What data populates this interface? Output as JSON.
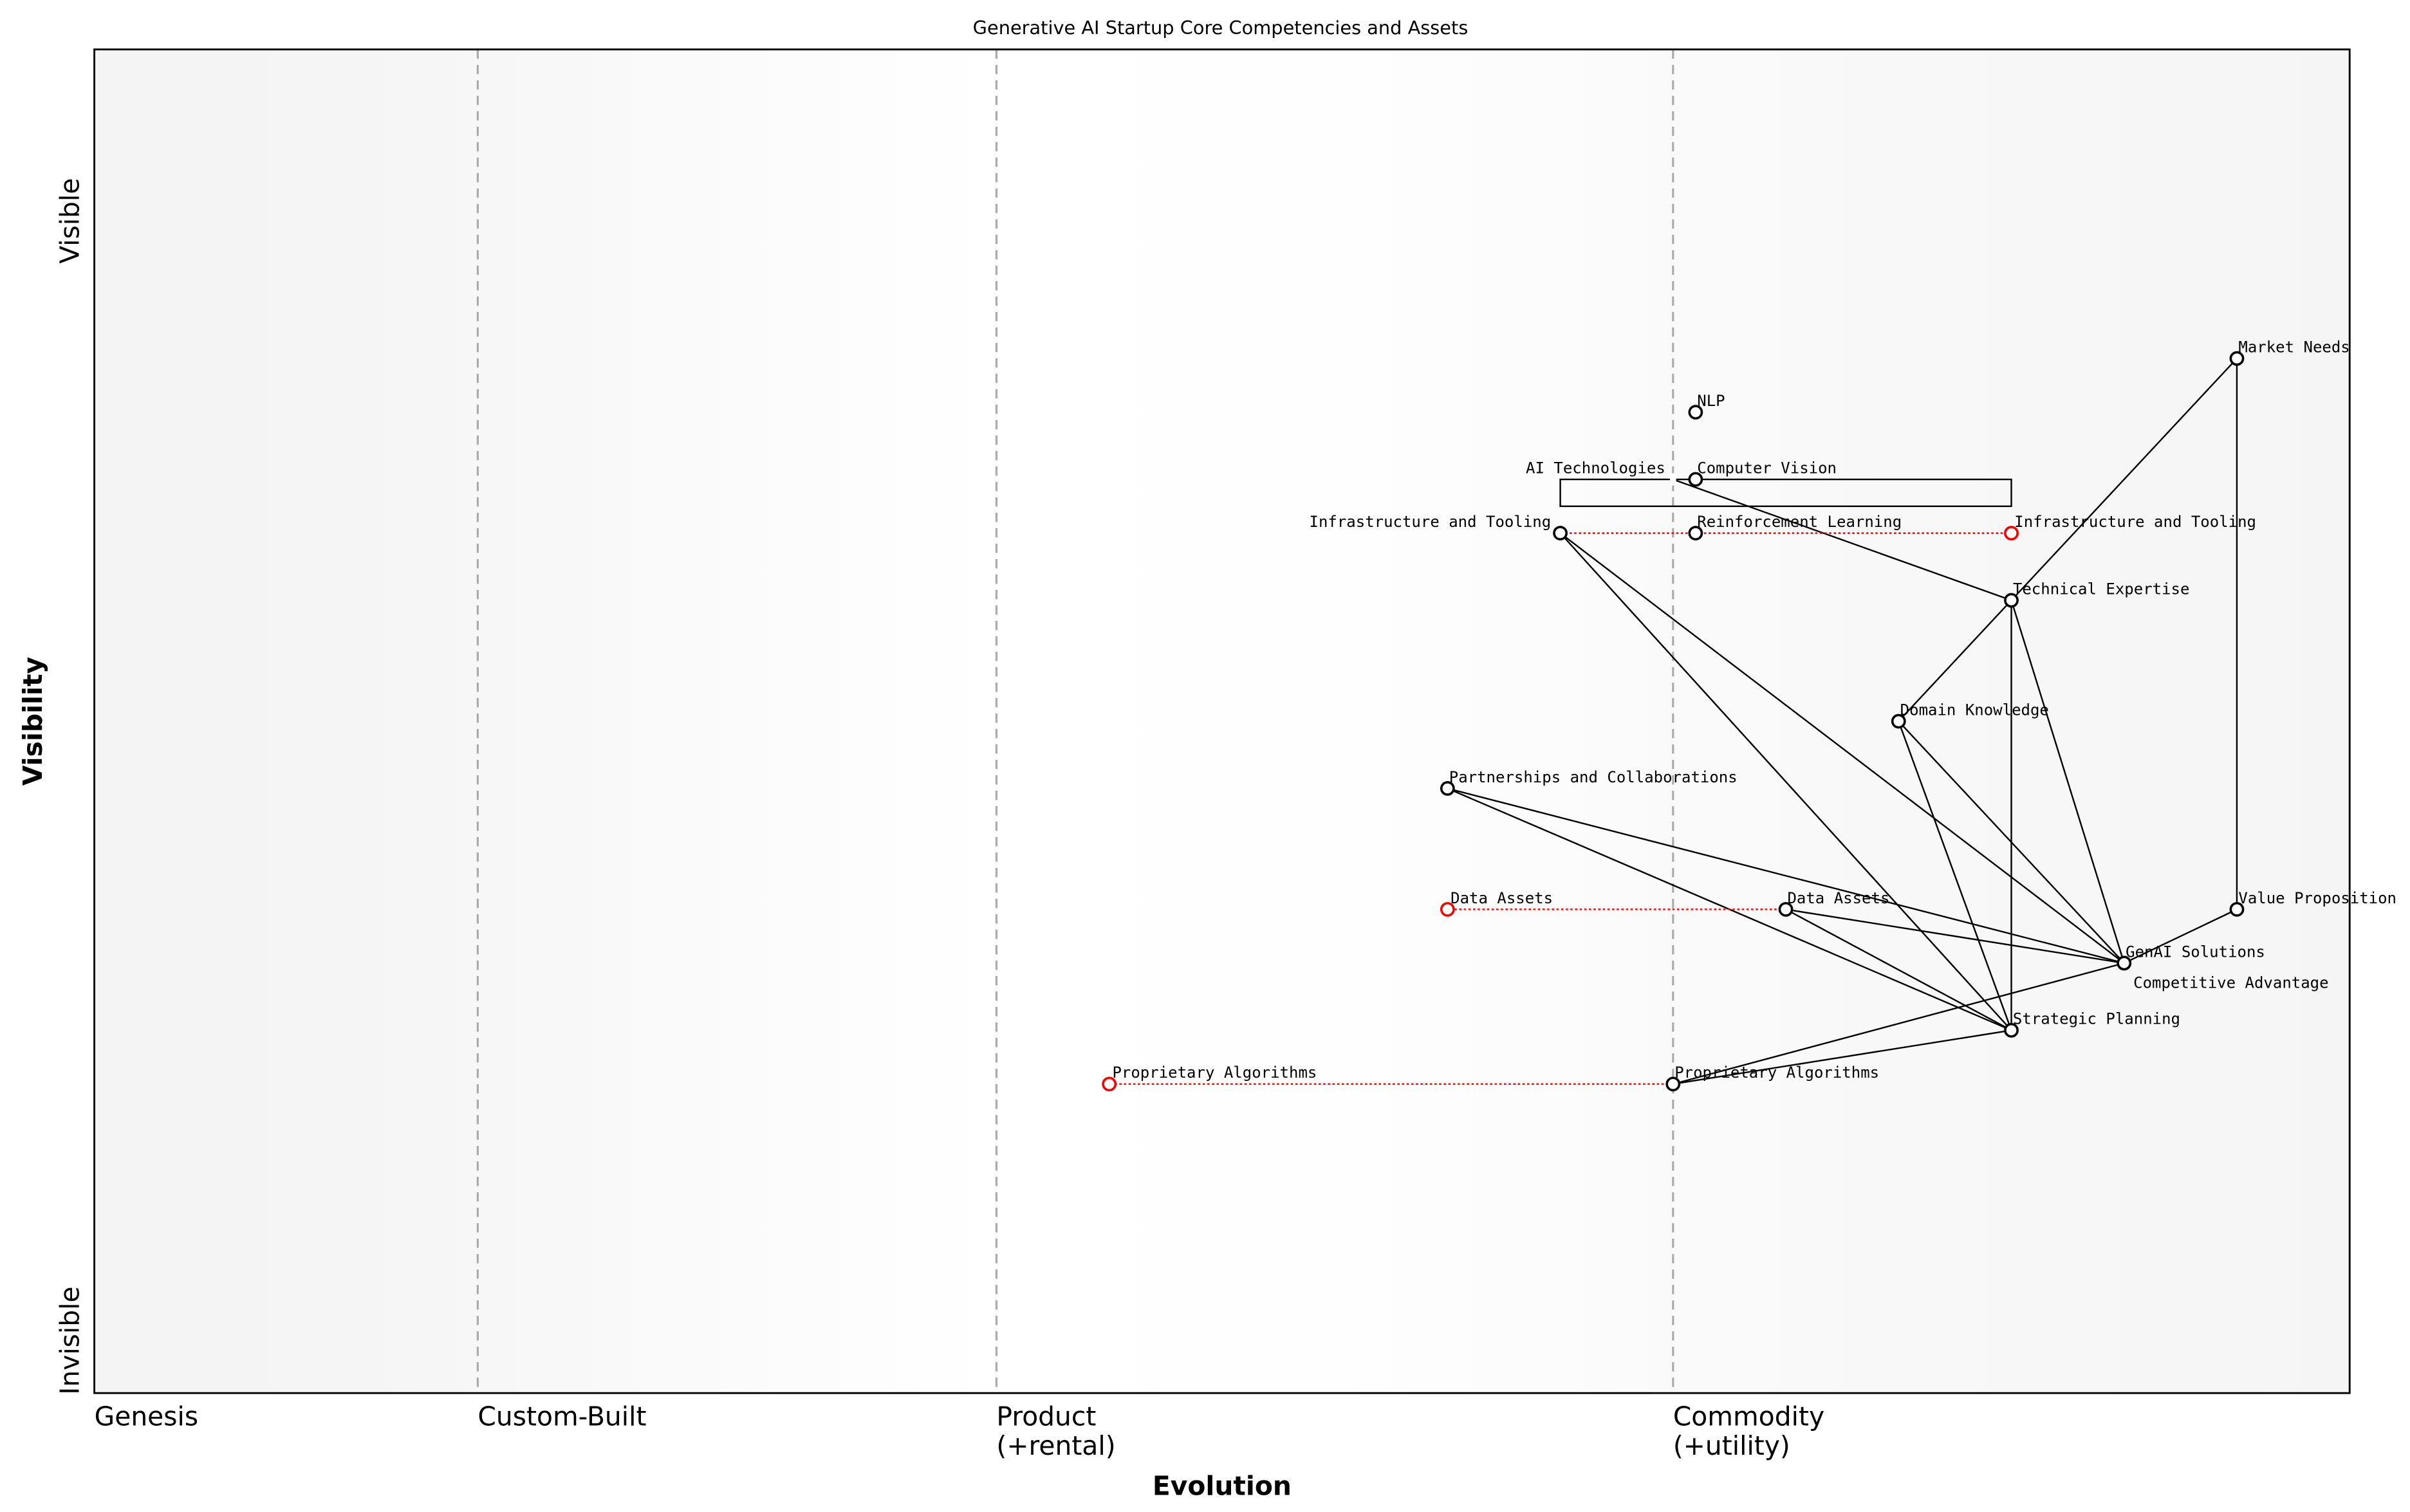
{
  "chart_data": {
    "type": "wardley-map",
    "title": "Generative AI Startup Core Competencies and Assets",
    "xlabel": "Evolution",
    "ylabel": "Visibility",
    "y_ticks": {
      "top": "Visible",
      "bottom": "Invisible"
    },
    "xlim": [
      0,
      1
    ],
    "ylim": [
      0,
      1
    ],
    "stages": [
      {
        "label": "Genesis",
        "evolution": 0.0
      },
      {
        "label": "Custom-Built",
        "evolution": 0.17
      },
      {
        "label": "Product\n(+rental)",
        "evolution": 0.4
      },
      {
        "label": "Commodity\n(+utility)",
        "evolution": 0.7
      }
    ],
    "components": [
      {
        "id": "market",
        "name": "Market Needs",
        "evolution": 0.95,
        "visibility": 0.77
      },
      {
        "id": "nlp",
        "name": "NLP",
        "evolution": 0.71,
        "visibility": 0.73
      },
      {
        "id": "cv",
        "name": "Computer Vision",
        "evolution": 0.71,
        "visibility": 0.68
      },
      {
        "id": "aitech",
        "name": "AI Technologies",
        "evolution": 0.7,
        "visibility": 0.68,
        "marker": "small"
      },
      {
        "id": "infra",
        "name": "Infrastructure and Tooling",
        "evolution": 0.65,
        "visibility": 0.64
      },
      {
        "id": "rl",
        "name": "Reinforcement Learning",
        "evolution": 0.71,
        "visibility": 0.64
      },
      {
        "id": "tech",
        "name": "Technical Expertise",
        "evolution": 0.85,
        "visibility": 0.59
      },
      {
        "id": "domain",
        "name": "Domain Knowledge",
        "evolution": 0.8,
        "visibility": 0.5
      },
      {
        "id": "partner",
        "name": "Partnerships and Collaborations",
        "evolution": 0.6,
        "visibility": 0.45
      },
      {
        "id": "data",
        "name": "Data Assets",
        "evolution": 0.75,
        "visibility": 0.36
      },
      {
        "id": "value",
        "name": "Value Proposition",
        "evolution": 0.95,
        "visibility": 0.36
      },
      {
        "id": "genai",
        "name": "GenAI Solutions",
        "evolution": 0.9,
        "visibility": 0.32
      },
      {
        "id": "comp",
        "name": "Competitive Advantage",
        "evolution": 0.9,
        "visibility": 0.32
      },
      {
        "id": "strat",
        "name": "Strategic Planning",
        "evolution": 0.85,
        "visibility": 0.27
      },
      {
        "id": "algo",
        "name": "Proprietary Algorithms",
        "evolution": 0.7,
        "visibility": 0.23
      }
    ],
    "evolved": [
      {
        "name": "Infrastructure and Tooling",
        "from": 0.65,
        "to": 0.85,
        "visibility": 0.64
      },
      {
        "name": "Data Assets",
        "from": 0.75,
        "to": 0.6,
        "visibility": 0.36
      },
      {
        "name": "Proprietary Algorithms",
        "from": 0.7,
        "to": 0.45,
        "visibility": 0.23
      }
    ],
    "pipelines": [
      {
        "name": "AI Technologies",
        "evolution_start": 0.65,
        "evolution_end": 0.85,
        "visibility_top": 0.68,
        "visibility_bottom": 0.66
      }
    ],
    "links": [
      [
        "market",
        "tech"
      ],
      [
        "market",
        "value"
      ],
      [
        "aitech",
        "tech"
      ],
      [
        "tech",
        "domain"
      ],
      [
        "tech",
        "strat"
      ],
      [
        "tech",
        "genai"
      ],
      [
        "infra",
        "genai"
      ],
      [
        "infra",
        "strat"
      ],
      [
        "domain",
        "genai"
      ],
      [
        "domain",
        "strat"
      ],
      [
        "partner",
        "genai"
      ],
      [
        "partner",
        "strat"
      ],
      [
        "data",
        "genai"
      ],
      [
        "data",
        "strat"
      ],
      [
        "value",
        "genai"
      ],
      [
        "algo",
        "genai"
      ],
      [
        "algo",
        "strat"
      ]
    ],
    "colors": {
      "evolved": "#ff0000",
      "component": "#000000",
      "stage_line": "#aaaaaa",
      "background_edge": "#f5f5f5"
    }
  }
}
